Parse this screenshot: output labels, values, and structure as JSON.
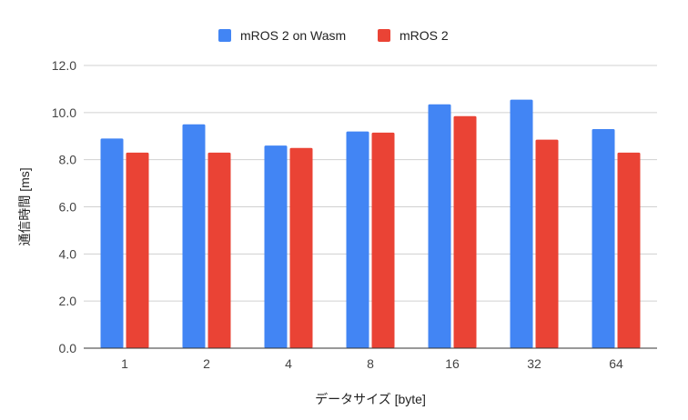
{
  "chart_data": {
    "type": "bar",
    "title": "",
    "xlabel": "データサイズ [byte]",
    "ylabel": "通信時間 [ms]",
    "categories": [
      "1",
      "2",
      "4",
      "8",
      "16",
      "32",
      "64"
    ],
    "series": [
      {
        "name": "mROS 2 on Wasm",
        "color": "#4285F4",
        "values": [
          8.9,
          9.5,
          8.6,
          9.2,
          10.35,
          10.55,
          9.3
        ]
      },
      {
        "name": "mROS 2",
        "color": "#EA4335",
        "values": [
          8.3,
          8.3,
          8.5,
          9.15,
          9.85,
          8.85,
          8.3
        ]
      }
    ],
    "ylim": [
      0,
      12
    ],
    "yticks": [
      "0.0",
      "2.0",
      "4.0",
      "6.0",
      "8.0",
      "10.0",
      "12.0"
    ],
    "grid": true,
    "legend": "top-center"
  }
}
